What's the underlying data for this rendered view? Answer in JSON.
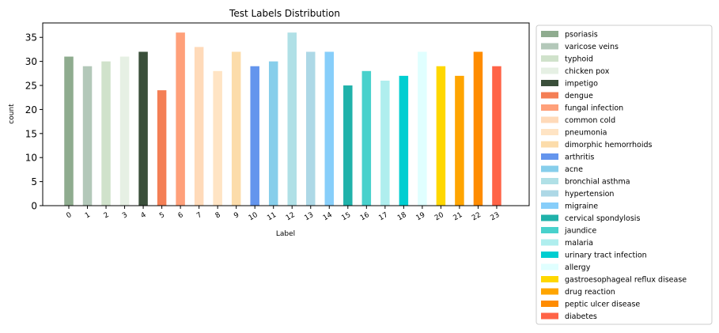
{
  "chart_data": {
    "type": "bar",
    "title": "Test Labels Distribution",
    "xlabel": "Label",
    "ylabel": "count",
    "ylim": [
      0,
      38
    ],
    "yticks": [
      0,
      5,
      10,
      15,
      20,
      25,
      30,
      35
    ],
    "grid": false,
    "legend_position": "outside-right",
    "categories": [
      "0",
      "1",
      "2",
      "3",
      "4",
      "5",
      "6",
      "7",
      "8",
      "9",
      "10",
      "11",
      "12",
      "13",
      "14",
      "15",
      "16",
      "17",
      "18",
      "19",
      "20",
      "21",
      "22",
      "23"
    ],
    "values": [
      31,
      29,
      30,
      31,
      32,
      24,
      36,
      33,
      28,
      32,
      29,
      30,
      36,
      32,
      32,
      25,
      28,
      26,
      27,
      32,
      29,
      27,
      32,
      29
    ],
    "series_labels": [
      "psoriasis",
      "varicose veins",
      "typhoid",
      "chicken pox",
      "impetigo",
      "dengue",
      "fungal infection",
      "common cold",
      "pneumonia",
      "dimorphic hemorrhoids",
      "arthritis",
      "acne",
      "bronchial asthma",
      "hypertension",
      "migraine",
      "cervical spondylosis",
      "jaundice",
      "malaria",
      "urinary tract infection",
      "allergy",
      "gastroesophageal reflux disease",
      "drug reaction",
      "peptic ulcer disease",
      "diabetes"
    ],
    "colors": [
      "#8fac8f",
      "#b3c8b9",
      "#d0e2cb",
      "#e6f0e4",
      "#3a4f3a",
      "#f47f55",
      "#ffa07a",
      "#ffdab9",
      "#ffe4c4",
      "#fcdcaa",
      "#6495ed",
      "#87ceeb",
      "#b0e0e6",
      "#add8e6",
      "#87cefa",
      "#20b2aa",
      "#48d1cc",
      "#afeeee",
      "#00ced1",
      "#e0ffff",
      "#ffd700",
      "#ffa500",
      "#ff8c00",
      "#ff6347"
    ]
  }
}
